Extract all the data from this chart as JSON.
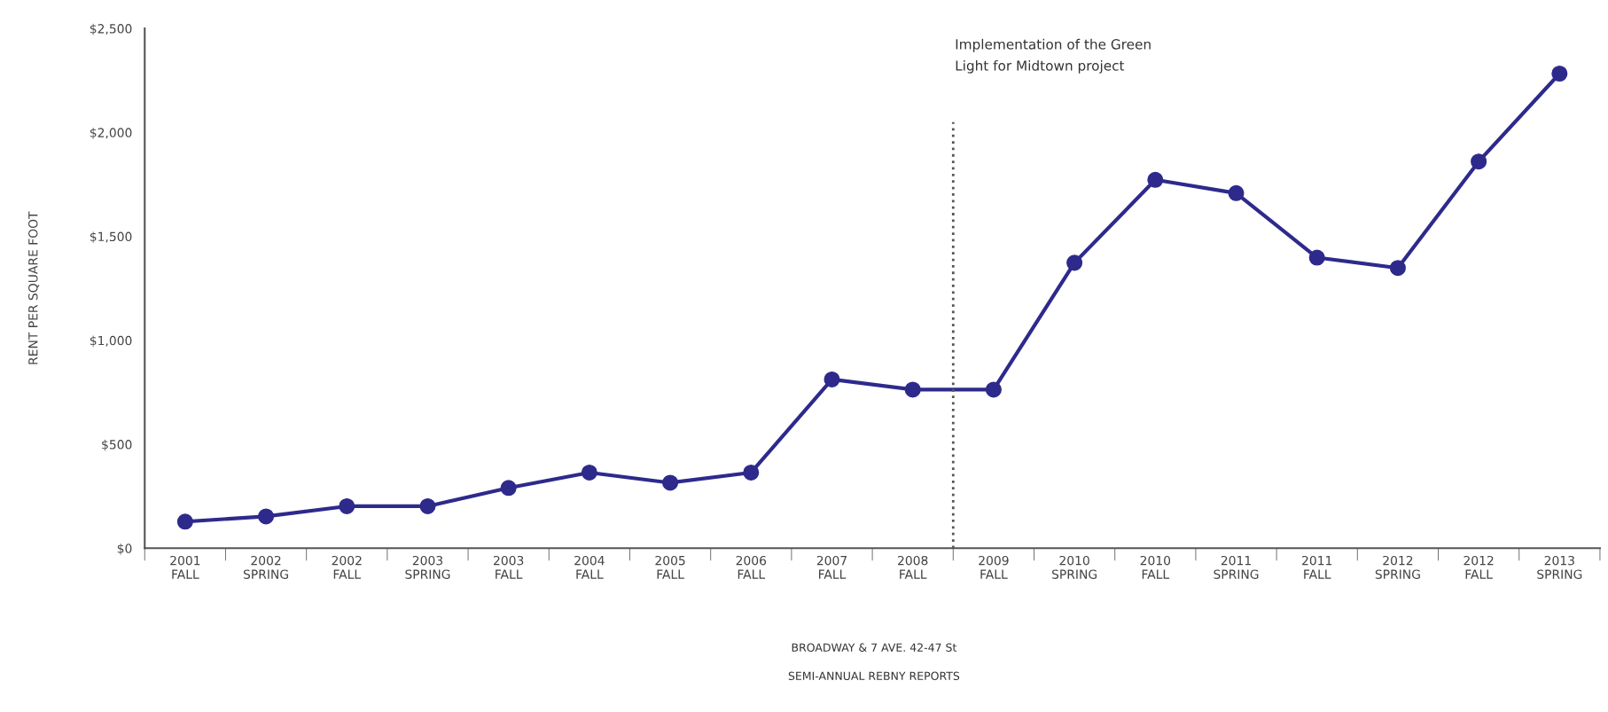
{
  "chart_data": {
    "type": "line",
    "categories": [
      "2001\nFALL",
      "2002\nSPRING",
      "2002\nFALL",
      "2003\nSPRING",
      "2003\nFALL",
      "2004\nFALL",
      "2005\nFALL",
      "2006\nFALL",
      "2007\nFALL",
      "2008\nFALL",
      "2009\nFALL",
      "2010\nSPRING",
      "2010\nFALL",
      "2011\nSPRING",
      "2011\nFALL",
      "2012\nSPRING",
      "2012\nFALL",
      "2013\nSPRING"
    ],
    "series": [
      {
        "color": "#2e2a8c",
        "values": [
          128,
          153,
          202,
          202,
          290,
          364,
          315,
          364,
          812,
          763,
          763,
          1373,
          1772,
          1708,
          1398,
          1348,
          1860,
          2283
        ]
      }
    ],
    "ylabel": "RENT PER SQUARE FOOT",
    "annotations": [
      "Implementation of the Green\nLight for Midtown project",
      "BROADWAY & 7 AVE. 42-47 St",
      "SEMI-ANNUAL REBNY REPORTS"
    ],
    "ylim": [
      0,
      2500
    ],
    "yticks": [
      {
        "value": 0,
        "label": "$0"
      },
      {
        "value": 500,
        "label": "$500"
      },
      {
        "value": 1000,
        "label": "$1,000"
      },
      {
        "value": 1500,
        "label": "$1,500"
      },
      {
        "value": 2000,
        "label": "$2,000"
      },
      {
        "value": 2500,
        "label": "$2,500"
      }
    ],
    "marker": "circle",
    "line_style": "solid",
    "grid": false,
    "legend": false
  }
}
